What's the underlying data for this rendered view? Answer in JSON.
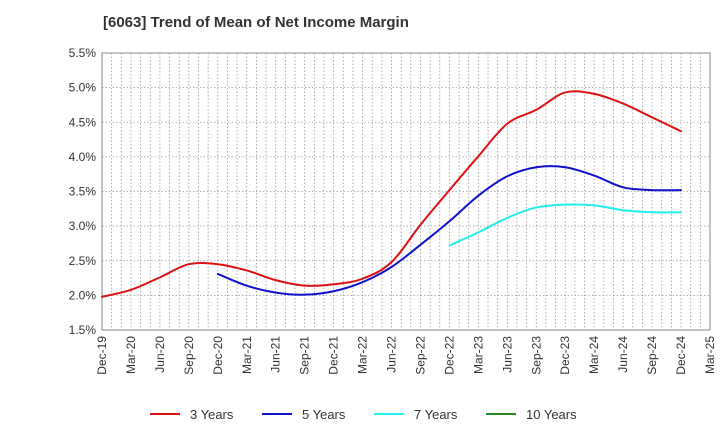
{
  "chart_data": {
    "type": "line",
    "title": "[6063]  Trend of Mean of Net Income Margin",
    "xlabel": "",
    "ylabel": "",
    "x_ticks": [
      "Dec-19",
      "Mar-20",
      "Jun-20",
      "Sep-20",
      "Dec-20",
      "Mar-21",
      "Jun-21",
      "Sep-21",
      "Dec-21",
      "Mar-22",
      "Jun-22",
      "Sep-22",
      "Dec-22",
      "Mar-23",
      "Jun-23",
      "Sep-23",
      "Dec-23",
      "Mar-24",
      "Jun-24",
      "Sep-24",
      "Dec-24",
      "Mar-25"
    ],
    "y_ticks": [
      "1.5%",
      "2.0%",
      "2.5%",
      "3.0%",
      "3.5%",
      "4.0%",
      "4.5%",
      "5.0%",
      "5.5%"
    ],
    "ylim": [
      1.5,
      5.5
    ],
    "y_unit": "%",
    "grid": true,
    "legend_position": "bottom",
    "series": [
      {
        "name": "3 Years",
        "color": "#dd1111",
        "x": [
          "Dec-19",
          "Mar-20",
          "Jun-20",
          "Sep-20",
          "Dec-20",
          "Mar-21",
          "Jun-21",
          "Sep-21",
          "Dec-21",
          "Mar-22",
          "Jun-22",
          "Sep-22",
          "Dec-22",
          "Mar-23",
          "Jun-23",
          "Sep-23",
          "Dec-23",
          "Mar-24",
          "Jun-24",
          "Sep-24",
          "Dec-24"
        ],
        "values": [
          1.98,
          2.08,
          2.26,
          2.45,
          2.45,
          2.36,
          2.22,
          2.14,
          2.16,
          2.24,
          2.48,
          3.02,
          3.52,
          4.01,
          4.48,
          4.68,
          4.93,
          4.91,
          4.77,
          4.57,
          4.37
        ]
      },
      {
        "name": "5 Years",
        "color": "#1111cc",
        "x": [
          "Dec-20",
          "Mar-21",
          "Jun-21",
          "Sep-21",
          "Dec-21",
          "Mar-22",
          "Jun-22",
          "Sep-22",
          "Dec-22",
          "Mar-23",
          "Jun-23",
          "Sep-23",
          "Dec-23",
          "Mar-24",
          "Jun-24",
          "Sep-24",
          "Dec-24"
        ],
        "values": [
          2.31,
          2.14,
          2.04,
          2.01,
          2.06,
          2.19,
          2.41,
          2.73,
          3.07,
          3.44,
          3.72,
          3.85,
          3.85,
          3.73,
          3.56,
          3.52,
          3.52
        ]
      },
      {
        "name": "7 Years",
        "color": "#22eeee",
        "x": [
          "Dec-22",
          "Mar-23",
          "Jun-23",
          "Sep-23",
          "Dec-23",
          "Mar-24",
          "Jun-24",
          "Sep-24",
          "Dec-24"
        ],
        "values": [
          2.72,
          2.91,
          3.12,
          3.27,
          3.31,
          3.3,
          3.23,
          3.2,
          3.2
        ]
      },
      {
        "name": "10 Years",
        "color": "#228822",
        "x": [],
        "values": []
      }
    ]
  }
}
